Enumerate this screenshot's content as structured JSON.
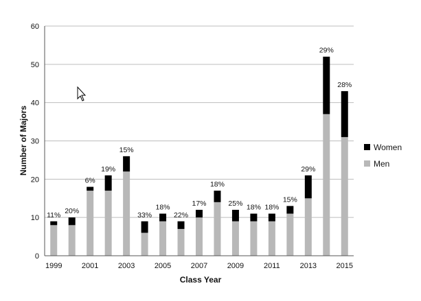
{
  "chart_data": {
    "type": "bar",
    "stacked": true,
    "xlabel": "Class Year",
    "ylabel": "Number of Majors",
    "ylim": [
      0,
      60
    ],
    "yticks": [
      0,
      10,
      20,
      30,
      40,
      50,
      60
    ],
    "grid": true,
    "legend_position": "right",
    "categories": [
      "1999",
      "2000",
      "2001",
      "2002",
      "2003",
      "2004",
      "2005",
      "2006",
      "2007",
      "2008",
      "2009",
      "2010",
      "2011",
      "2012",
      "2013",
      "2014",
      "2015"
    ],
    "xtick_labels": [
      "1999",
      "",
      "2001",
      "",
      "2003",
      "",
      "2005",
      "",
      "2007",
      "",
      "2009",
      "",
      "2011",
      "",
      "2013",
      "",
      "2015"
    ],
    "series": [
      {
        "name": "Men",
        "color": "#b8b8b8",
        "values": [
          8,
          8,
          17,
          17,
          22,
          6,
          9,
          7,
          10,
          14,
          9,
          9,
          9,
          11,
          15,
          37,
          31
        ]
      },
      {
        "name": "Women",
        "color": "#000000",
        "values": [
          1,
          2,
          1,
          4,
          4,
          3,
          2,
          2,
          2,
          3,
          3,
          2,
          2,
          2,
          6,
          15,
          12
        ]
      }
    ],
    "annotations": [
      "11%",
      "20%",
      "6%",
      "19%",
      "15%",
      "33%",
      "18%",
      "22%",
      "17%",
      "18%",
      "25%",
      "18%",
      "18%",
      "15%",
      "29%",
      "29%",
      "28%"
    ],
    "legend_order": [
      "Women",
      "Men"
    ]
  }
}
